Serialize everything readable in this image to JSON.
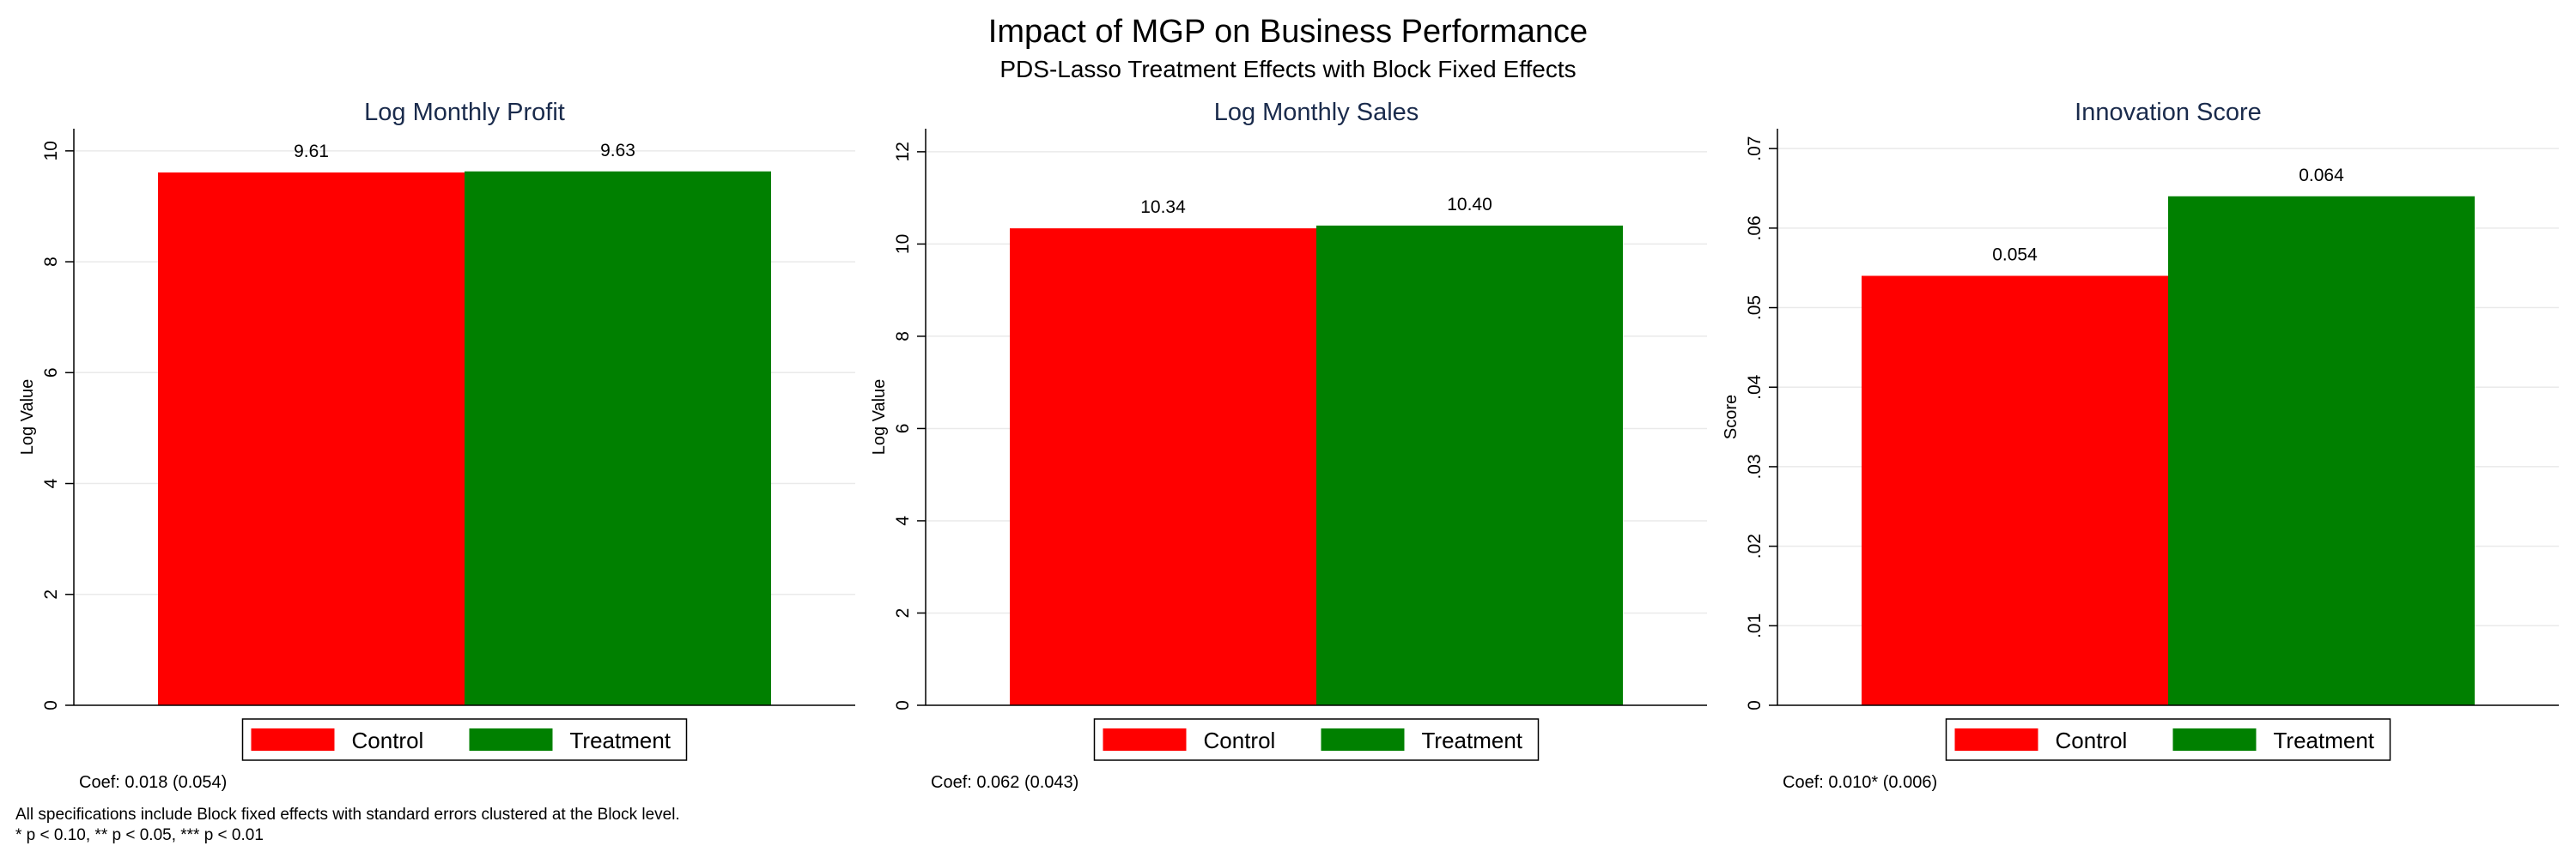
{
  "title": "Impact of MGP on Business Performance",
  "subtitle": "PDS-Lasso Treatment Effects with Block Fixed Effects",
  "colors": {
    "control": "#ff0000",
    "treatment": "#008000",
    "panel_title": "#1a2b4c",
    "grid": "#eaeaea"
  },
  "chart_data": [
    {
      "type": "bar",
      "title": "Log Monthly Profit",
      "ylabel": "Log Value",
      "categories": [
        "Control",
        "Treatment"
      ],
      "values": [
        9.61,
        9.63
      ],
      "value_labels": [
        "9.61",
        "9.63"
      ],
      "ylim": [
        0,
        10.4
      ],
      "yticks": [
        0,
        2,
        4,
        6,
        8,
        10
      ],
      "ytick_labels": [
        "0",
        "2",
        "4",
        "6",
        "8",
        "10"
      ],
      "grid": true,
      "legend": {
        "position": "bottom",
        "entries": [
          "Control",
          "Treatment"
        ]
      },
      "note": "Coef: 0.018 (0.054)"
    },
    {
      "type": "bar",
      "title": "Log Monthly Sales",
      "ylabel": "Log Value",
      "categories": [
        "Control",
        "Treatment"
      ],
      "values": [
        10.34,
        10.4
      ],
      "value_labels": [
        "10.34",
        "10.40"
      ],
      "ylim": [
        0,
        12.5
      ],
      "yticks": [
        0,
        2,
        4,
        6,
        8,
        10,
        12
      ],
      "ytick_labels": [
        "0",
        "2",
        "4",
        "6",
        "8",
        "10",
        "12"
      ],
      "grid": true,
      "legend": {
        "position": "bottom",
        "entries": [
          "Control",
          "Treatment"
        ]
      },
      "note": "Coef: 0.062 (0.043)"
    },
    {
      "type": "bar",
      "title": "Innovation Score",
      "ylabel": "Score",
      "categories": [
        "Control",
        "Treatment"
      ],
      "values": [
        0.054,
        0.064
      ],
      "value_labels": [
        "0.054",
        "0.064"
      ],
      "ylim": [
        0,
        0.0725
      ],
      "yticks": [
        0,
        0.01,
        0.02,
        0.03,
        0.04,
        0.05,
        0.06,
        0.07
      ],
      "ytick_labels": [
        "0",
        ".01",
        ".02",
        ".03",
        ".04",
        ".05",
        ".06",
        ".07"
      ],
      "grid": true,
      "legend": {
        "position": "bottom",
        "entries": [
          "Control",
          "Treatment"
        ]
      },
      "note": "Coef: 0.010* (0.006)"
    }
  ],
  "footnote": {
    "line1": "All specifications include Block fixed effects with standard errors clustered at the Block level.",
    "line2": "* p < 0.10, ** p < 0.05, *** p < 0.01"
  }
}
